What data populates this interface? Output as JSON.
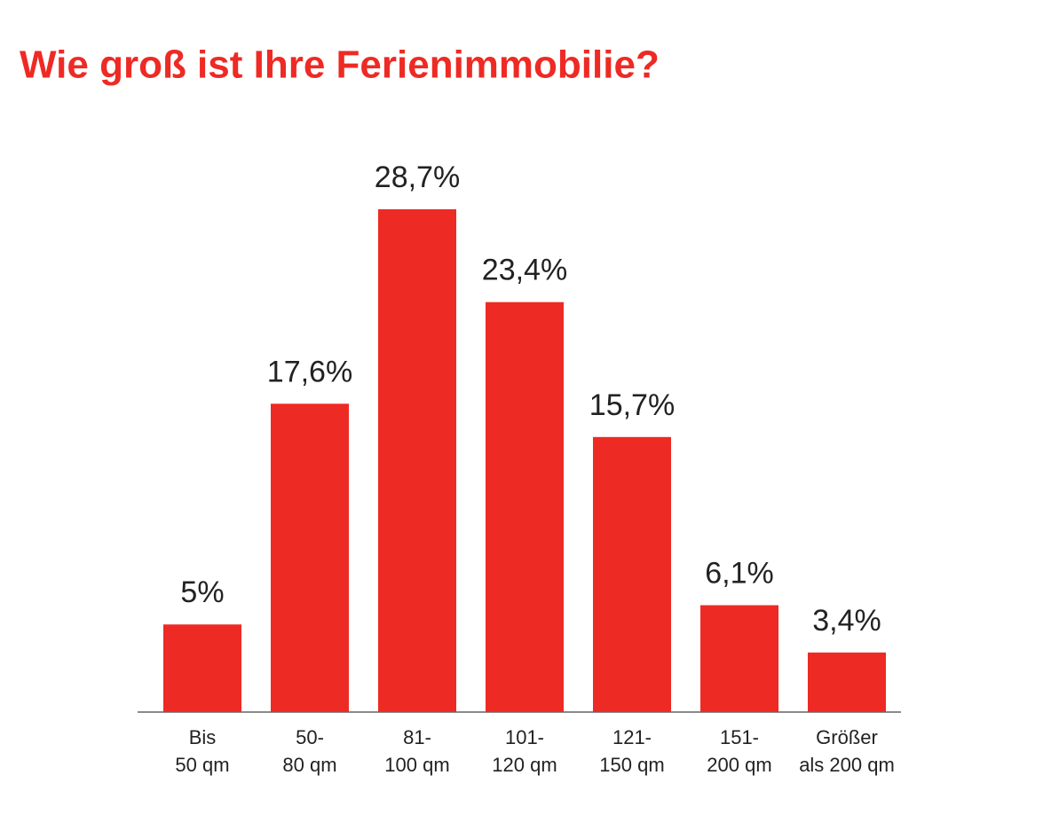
{
  "chart_data": {
    "type": "bar",
    "title": "Wie groß ist Ihre Ferienimmobilie?",
    "categories": [
      [
        "Bis",
        "50 qm"
      ],
      [
        "50-",
        "80 qm"
      ],
      [
        "81-",
        "100 qm"
      ],
      [
        "101-",
        "120 qm"
      ],
      [
        "121-",
        "150 qm"
      ],
      [
        "151-",
        "200 qm"
      ],
      [
        "Größer",
        "als 200 qm"
      ]
    ],
    "values": [
      5,
      17.6,
      28.7,
      23.4,
      15.7,
      6.1,
      3.4
    ],
    "value_labels": [
      "5%",
      "17,6%",
      "28,7%",
      "23,4%",
      "15,7%",
      "6,1%",
      "3,4%"
    ],
    "color": "#ee2a24"
  }
}
